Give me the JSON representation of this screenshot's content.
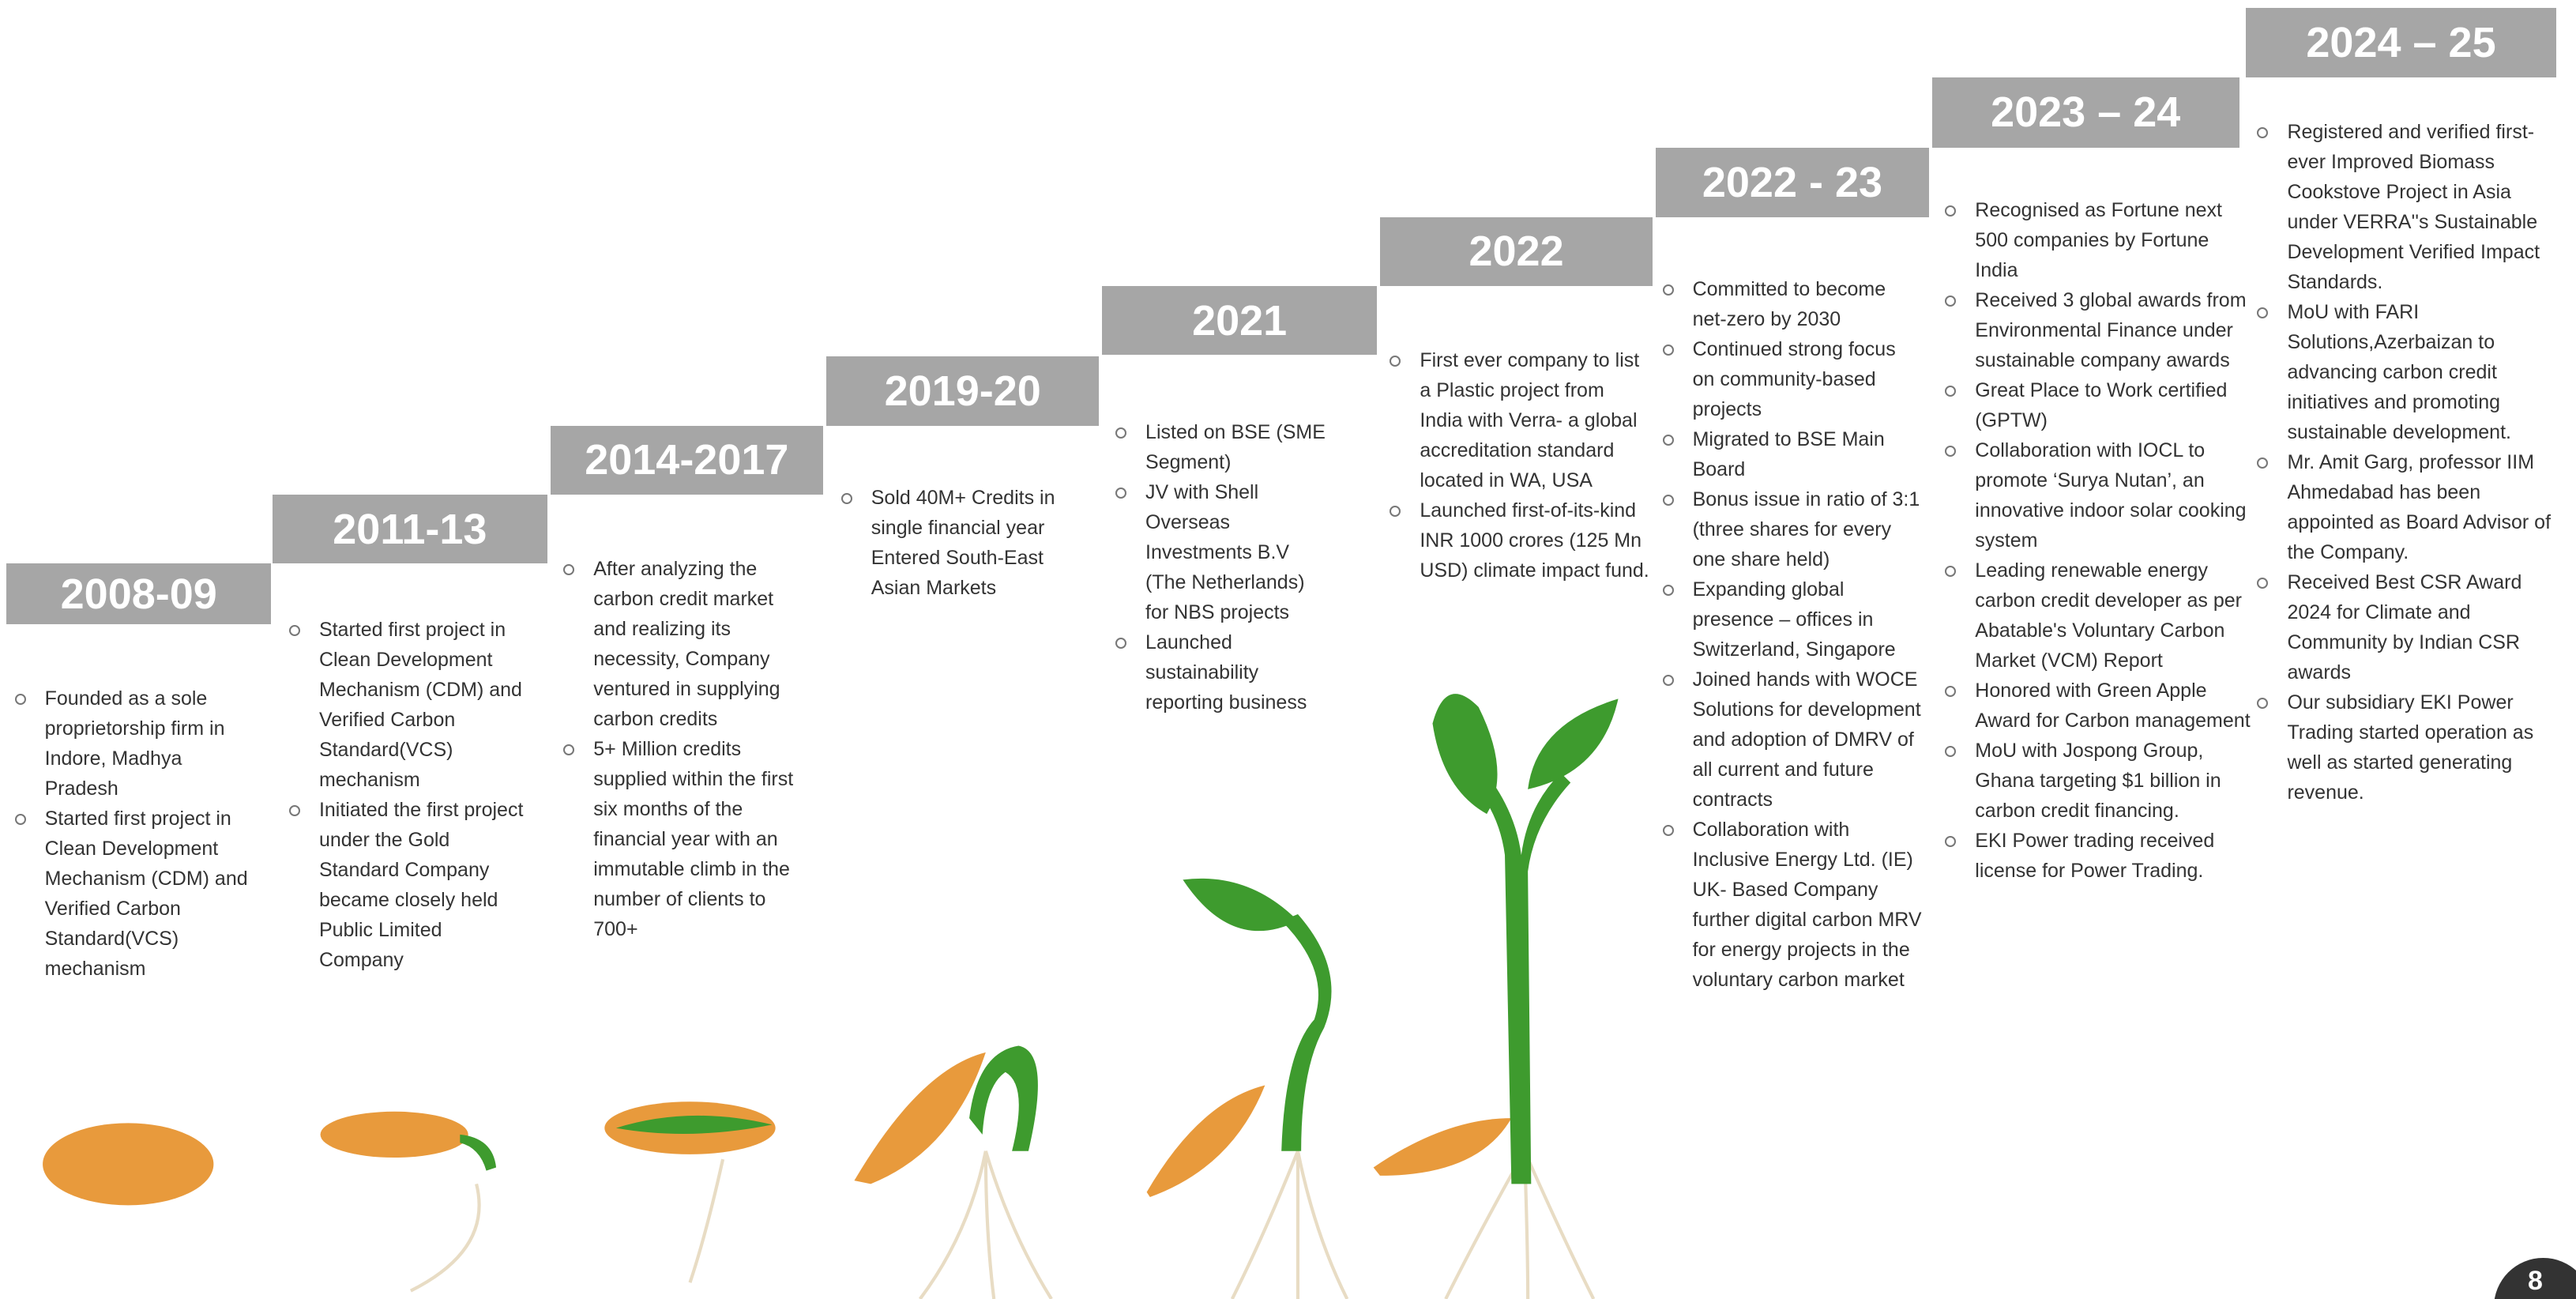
{
  "timeline": {
    "steps": [
      {
        "year": "2008-09",
        "items": [
          "Founded as a sole proprietorship firm in Indore, Madhya Pradesh",
          "Started first project in Clean Development Mechanism (CDM) and Verified Carbon Standard(VCS) mechanism"
        ]
      },
      {
        "year": "2011-13",
        "items": [
          "Started first project in Clean Development Mechanism (CDM) and Verified Carbon Standard(VCS) mechanism",
          "Initiated the first project under the Gold Standard Company became closely held Public Limited Company"
        ]
      },
      {
        "year": "2014-2017",
        "items": [
          "After analyzing the carbon credit market and realizing its necessity, Company ventured in supplying carbon credits",
          "5+ Million credits supplied within the first six months of the financial year with an immutable climb in the number of clients to 700+"
        ]
      },
      {
        "year": "2019-20",
        "items": [
          "Sold 40M+ Credits in single financial year Entered South-East Asian Markets"
        ]
      },
      {
        "year": "2021",
        "items": [
          "Listed on BSE (SME Segment)",
          "JV with Shell Overseas Investments B.V (The Netherlands)  for NBS projects",
          "Launched sustainability reporting business"
        ]
      },
      {
        "year": "2022",
        "items": [
          "First ever company to list a Plastic project from India with Verra- a global accreditation standard located in WA, USA",
          "Launched first-of-its-kind INR 1000 crores (125 Mn USD) climate impact fund."
        ]
      },
      {
        "year": "2022 - 23",
        "items": [
          "Committed to become net-zero by 2030",
          "Continued strong focus on community-based projects",
          "Migrated to BSE Main Board",
          "Bonus issue in ratio of 3:1 (three shares for every one share held)",
          "Expanding global presence – offices in Switzerland, Singapore",
          "Joined hands with WOCE Solutions for development and adoption of DMRV of all current and future contracts",
          "Collaboration with Inclusive Energy Ltd. (IE) UK- Based Company further digital carbon MRV for energy projects in the voluntary carbon market"
        ]
      },
      {
        "year": "2023 – 24",
        "items": [
          "Recognised as Fortune next 500 companies by Fortune India",
          "Received 3 global awards from Environmental Finance under sustainable company awards",
          "Great Place to Work certified (GPTW)",
          "Collaboration with IOCL to promote ‘Surya Nutan’, an innovative indoor solar cooking system",
          "Leading renewable energy carbon credit developer as per Abatable's Voluntary Carbon Market (VCM) Report",
          "Honored with Green Apple Award for Carbon management",
          "MoU with Jospong Group, Ghana targeting $1 billion in carbon credit financing.",
          "EKI Power trading received license for Power Trading."
        ]
      },
      {
        "year": "2024 – 25",
        "items": [
          "Registered and verified first-ever Improved Biomass Cookstove Project in Asia under VERRA''s Sustainable Development Verified Impact Standards.",
          "MoU with FARI Solutions,Azerbaizan  to advancing carbon credit initiatives and promoting sustainable development.",
          "Mr. Amit Garg, professor IIM Ahmedabad has been appointed as Board Advisor of the Company.",
          "Received Best CSR Award 2024 for Climate and Community by Indian CSR awards",
          "Our subsidiary EKI Power Trading started operation as well as started generating revenue."
        ]
      }
    ]
  },
  "page_number": "8"
}
